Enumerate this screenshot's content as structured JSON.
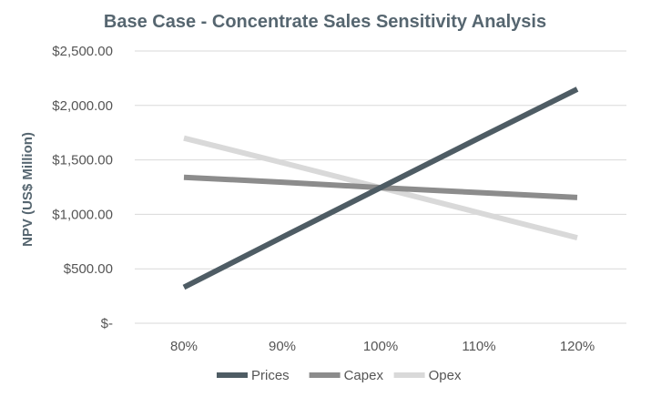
{
  "chart_data": {
    "type": "line",
    "title": "Base Case - Concentrate Sales Sensitivity Analysis",
    "xlabel": "",
    "ylabel": "NPV (US$ Million)",
    "categories": [
      "80%",
      "90%",
      "100%",
      "110%",
      "120%"
    ],
    "y_ticks": [
      0,
      500,
      1000,
      1500,
      2000,
      2500
    ],
    "y_tick_labels": [
      "$-",
      "$500.00",
      "$1,000.00",
      "$1,500.00",
      "$2,000.00",
      "$2,500.00"
    ],
    "ylim": [
      0,
      2500
    ],
    "grid": true,
    "legend_position": "bottom",
    "series": [
      {
        "name": "Prices",
        "values": [
          330,
          790,
          1245,
          1700,
          2150
        ],
        "color": "#4e5c64"
      },
      {
        "name": "Capex",
        "values": [
          1340,
          1295,
          1245,
          1200,
          1155
        ],
        "color": "#8c8c8c"
      },
      {
        "name": "Opex",
        "values": [
          1700,
          1475,
          1245,
          1015,
          785
        ],
        "color": "#d9d9d9"
      }
    ]
  }
}
